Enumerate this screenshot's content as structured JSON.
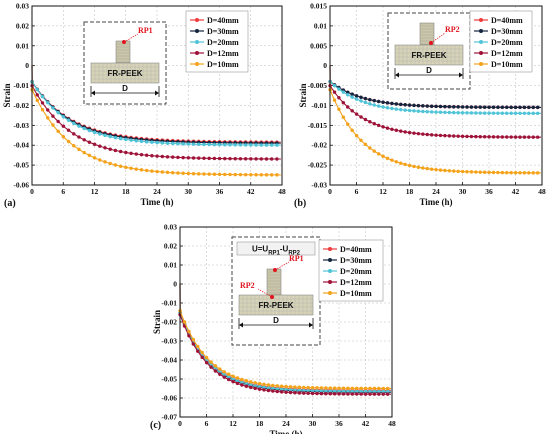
{
  "colors": {
    "D=40mm": "#ee3b3b",
    "D=30mm": "#14253f",
    "D=20mm": "#4fc3d7",
    "D=12mm": "#9e1238",
    "D=10mm": "#f4a21a"
  },
  "inset": {
    "material_label": "FR-PEEK",
    "dimension_label": "D",
    "formula_label": "U=U_RP1-U_RP2",
    "rp1": "RP1",
    "rp2": "RP2"
  },
  "chart_data": [
    {
      "type": "line",
      "panel_label": "(a)",
      "xlabel": "Time (h)",
      "ylabel": "Strain",
      "xlim": [
        0,
        48
      ],
      "ylim": [
        -0.06,
        0.03
      ],
      "xticks": [
        0,
        6,
        12,
        18,
        24,
        30,
        36,
        42,
        48
      ],
      "yticks": [
        0.03,
        0.02,
        0.01,
        0,
        -0.01,
        -0.02,
        -0.03,
        -0.04,
        -0.05,
        -0.06
      ],
      "grid": true,
      "legend_position": "top-right",
      "series": [
        {
          "name": "D=40mm",
          "start": 0,
          "jump": -0.008,
          "plateau": -0.0385,
          "tau": 7.5
        },
        {
          "name": "D=30mm",
          "start": 0,
          "jump": -0.008,
          "plateau": -0.039,
          "tau": 7.5
        },
        {
          "name": "D=20mm",
          "start": 0,
          "jump": -0.008,
          "plateau": -0.04,
          "tau": 7.5
        },
        {
          "name": "D=12mm",
          "start": 0,
          "jump": -0.01,
          "plateau": -0.047,
          "tau": 7.5
        },
        {
          "name": "D=10mm",
          "start": 0,
          "jump": -0.012,
          "plateau": -0.055,
          "tau": 7.5
        }
      ]
    },
    {
      "type": "line",
      "panel_label": "(b)",
      "xlabel": "Time (h)",
      "ylabel": "Strain",
      "xlim": [
        0,
        48
      ],
      "ylim": [
        -0.03,
        0.015
      ],
      "xticks": [
        0,
        6,
        12,
        18,
        24,
        30,
        36,
        42,
        48
      ],
      "yticks": [
        0.015,
        0.01,
        0.005,
        0,
        -0.005,
        -0.01,
        -0.015,
        -0.02,
        -0.025,
        -0.03
      ],
      "grid": true,
      "legend_position": "top-right",
      "series": [
        {
          "name": "D=40mm",
          "start": 0,
          "jump": -0.004,
          "plateau": -0.0105,
          "tau": 7.5
        },
        {
          "name": "D=30mm",
          "start": 0,
          "jump": -0.004,
          "plateau": -0.0105,
          "tau": 7.5
        },
        {
          "name": "D=20mm",
          "start": 0,
          "jump": -0.004,
          "plateau": -0.012,
          "tau": 7.5
        },
        {
          "name": "D=12mm",
          "start": 0,
          "jump": -0.005,
          "plateau": -0.018,
          "tau": 7.5
        },
        {
          "name": "D=10mm",
          "start": 0,
          "jump": -0.006,
          "plateau": -0.027,
          "tau": 7.5
        }
      ]
    },
    {
      "type": "line",
      "panel_label": "(c)",
      "xlabel": "Time (h)",
      "ylabel": "Strain",
      "xlim": [
        0,
        48
      ],
      "ylim": [
        -0.07,
        0.03
      ],
      "xticks": [
        0,
        6,
        12,
        18,
        24,
        30,
        36,
        42,
        48
      ],
      "yticks": [
        0.03,
        0.02,
        0.01,
        0,
        -0.01,
        -0.02,
        -0.03,
        -0.04,
        -0.05,
        -0.06,
        -0.07
      ],
      "grid": true,
      "legend_position": "top-right",
      "series": [
        {
          "name": "D=40mm",
          "start": 0.0,
          "jump": -0.015,
          "plateau": -0.056,
          "tau": 6.5
        },
        {
          "name": "D=30mm",
          "start": 0.0,
          "jump": -0.015,
          "plateau": -0.057,
          "tau": 6.5
        },
        {
          "name": "D=20mm",
          "start": 0.0,
          "jump": -0.015,
          "plateau": -0.0565,
          "tau": 6.5
        },
        {
          "name": "D=12mm",
          "start": 0.0,
          "jump": -0.016,
          "plateau": -0.058,
          "tau": 6.5
        },
        {
          "name": "D=10mm",
          "start": 0.0,
          "jump": -0.014,
          "plateau": -0.055,
          "tau": 6.5
        }
      ]
    }
  ]
}
